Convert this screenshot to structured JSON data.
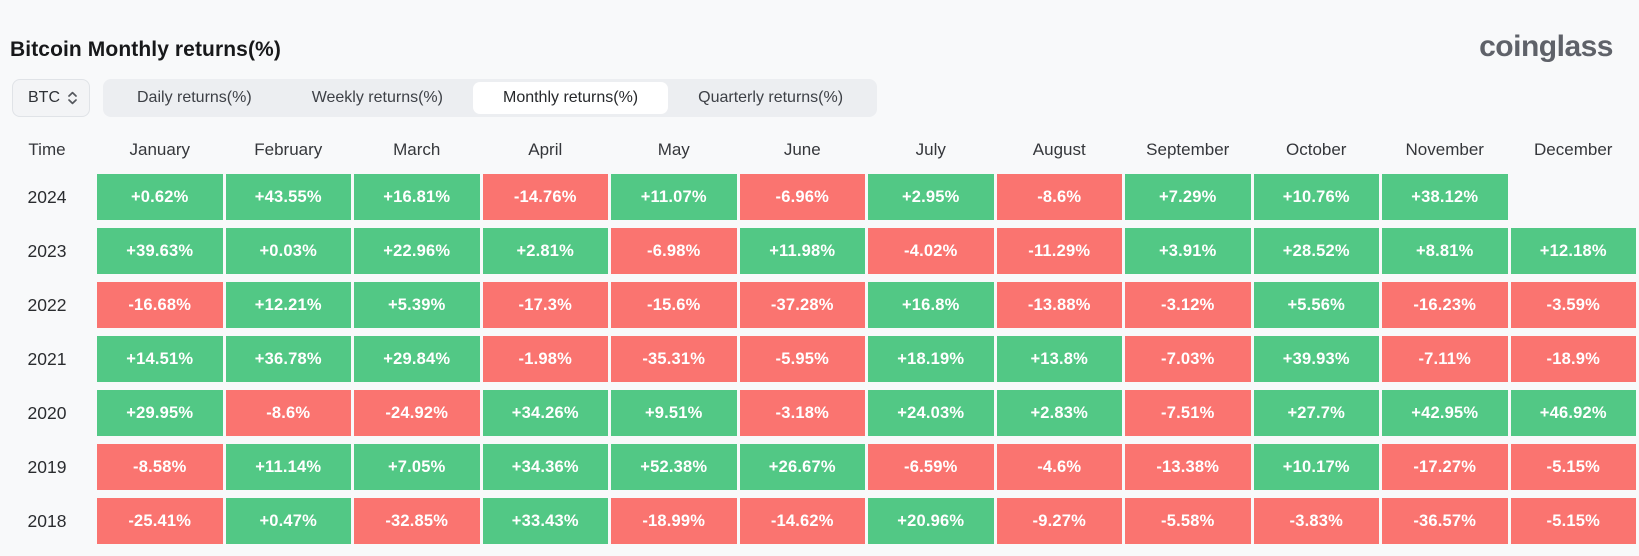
{
  "header": {
    "title": "Bitcoin Monthly returns(%)",
    "logo": "coinglass"
  },
  "controls": {
    "symbol_select": {
      "value": "BTC",
      "icon": "updown-chevron-icon"
    },
    "tabs": [
      {
        "label": "Daily returns(%)",
        "active": false
      },
      {
        "label": "Weekly returns(%)",
        "active": false
      },
      {
        "label": "Monthly returns(%)",
        "active": true
      },
      {
        "label": "Quarterly returns(%)",
        "active": false
      }
    ]
  },
  "table": {
    "time_header": "Time",
    "columns": [
      "January",
      "February",
      "March",
      "April",
      "May",
      "June",
      "July",
      "August",
      "September",
      "October",
      "November",
      "December"
    ],
    "rows": [
      {
        "year": "2024",
        "values": [
          "+0.62%",
          "+43.55%",
          "+16.81%",
          "-14.76%",
          "+11.07%",
          "-6.96%",
          "+2.95%",
          "-8.6%",
          "+7.29%",
          "+10.76%",
          "+38.12%",
          ""
        ]
      },
      {
        "year": "2023",
        "values": [
          "+39.63%",
          "+0.03%",
          "+22.96%",
          "+2.81%",
          "-6.98%",
          "+11.98%",
          "-4.02%",
          "-11.29%",
          "+3.91%",
          "+28.52%",
          "+8.81%",
          "+12.18%"
        ]
      },
      {
        "year": "2022",
        "values": [
          "-16.68%",
          "+12.21%",
          "+5.39%",
          "-17.3%",
          "-15.6%",
          "-37.28%",
          "+16.8%",
          "-13.88%",
          "-3.12%",
          "+5.56%",
          "-16.23%",
          "-3.59%"
        ]
      },
      {
        "year": "2021",
        "values": [
          "+14.51%",
          "+36.78%",
          "+29.84%",
          "-1.98%",
          "-35.31%",
          "-5.95%",
          "+18.19%",
          "+13.8%",
          "-7.03%",
          "+39.93%",
          "-7.11%",
          "-18.9%"
        ]
      },
      {
        "year": "2020",
        "values": [
          "+29.95%",
          "-8.6%",
          "-24.92%",
          "+34.26%",
          "+9.51%",
          "-3.18%",
          "+24.03%",
          "+2.83%",
          "-7.51%",
          "+27.7%",
          "+42.95%",
          "+46.92%"
        ]
      },
      {
        "year": "2019",
        "values": [
          "-8.58%",
          "+11.14%",
          "+7.05%",
          "+34.36%",
          "+52.38%",
          "+26.67%",
          "-6.59%",
          "-4.6%",
          "-13.38%",
          "+10.17%",
          "-17.27%",
          "-5.15%"
        ]
      },
      {
        "year": "2018",
        "values": [
          "-25.41%",
          "+0.47%",
          "-32.85%",
          "+33.43%",
          "-18.99%",
          "-14.62%",
          "+20.96%",
          "-9.27%",
          "-5.58%",
          "-3.83%",
          "-36.57%",
          "-5.15%"
        ]
      }
    ]
  },
  "colors": {
    "positive": "#52c885",
    "negative": "#fa7470",
    "page_background": "#f8f9fa",
    "tabbar_background": "#eceef1",
    "active_tab_background": "#ffffff",
    "logo_gray": "#5f6269"
  }
}
